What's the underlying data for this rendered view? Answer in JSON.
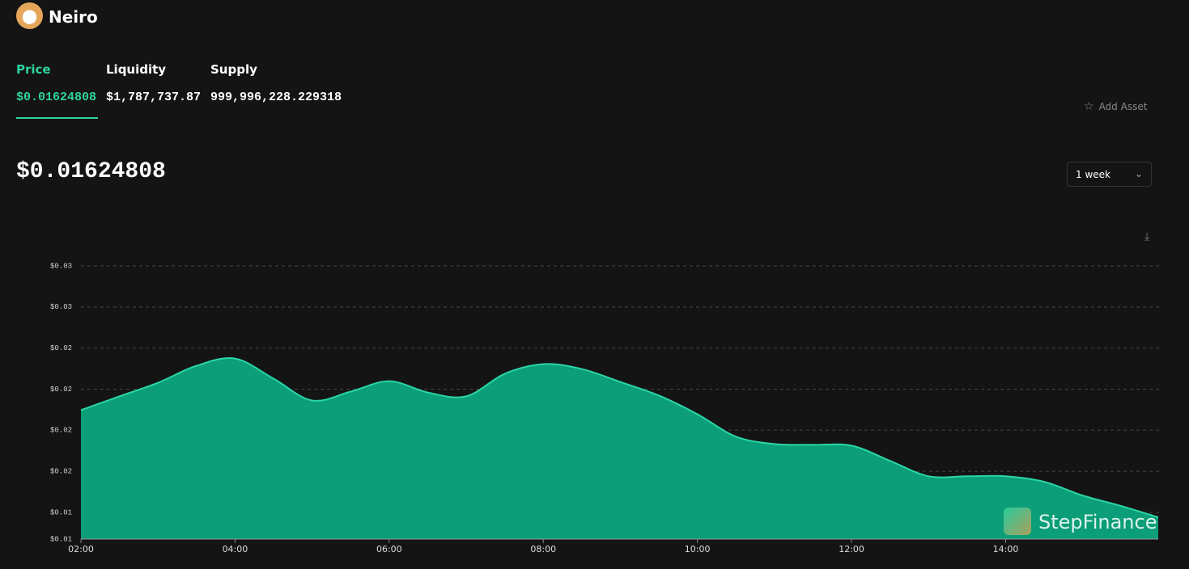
{
  "header": {
    "title": "Neiro"
  },
  "stats": [
    {
      "label": "Price",
      "value": "$0.01624808"
    },
    {
      "label": "Liquidity",
      "value": "$1,787,737.87"
    },
    {
      "label": "Supply",
      "value": "999,996,228.229318"
    }
  ],
  "add_asset": "Add Asset",
  "current_price": "$0.01624808",
  "range_select": "1 week",
  "watermark": "StepFinance",
  "chart_data": {
    "type": "area",
    "color": "#0b9e78",
    "line_color": "#2ad6a6",
    "grid": true,
    "x": [
      2,
      2.5,
      3,
      3.5,
      4,
      4.5,
      5,
      5.5,
      6,
      6.5,
      7,
      7.5,
      8,
      8.5,
      9,
      9.5,
      10,
      10.5,
      11,
      11.5,
      12,
      12.5,
      13,
      13.5,
      14,
      14.5,
      15,
      15.5,
      15.98
    ],
    "values": [
      0.01998,
      0.02065,
      0.02131,
      0.02214,
      0.02249,
      0.02151,
      0.02045,
      0.02088,
      0.02139,
      0.02084,
      0.02065,
      0.02175,
      0.02222,
      0.02198,
      0.02135,
      0.02069,
      0.01978,
      0.01869,
      0.01833,
      0.01829,
      0.01825,
      0.01751,
      0.01676,
      0.01676,
      0.01676,
      0.01649,
      0.01582,
      0.01531,
      0.01476
    ],
    "xlim": [
      2,
      15.98
    ],
    "xticks": [
      {
        "value": 2,
        "label": "02:00"
      },
      {
        "value": 4,
        "label": "04:00"
      },
      {
        "value": 6,
        "label": "06:00"
      },
      {
        "value": 8,
        "label": "08:00"
      },
      {
        "value": 10,
        "label": "10:00"
      },
      {
        "value": 12,
        "label": "12:00"
      },
      {
        "value": 14,
        "label": "14:00"
      }
    ],
    "ylim": [
      0.0137,
      0.027
    ],
    "yticks": [
      {
        "value": 0.0137,
        "label": "$0.01"
      },
      {
        "value": 0.015,
        "label": "$0.01"
      },
      {
        "value": 0.017,
        "label": "$0.02"
      },
      {
        "value": 0.019,
        "label": "$0.02"
      },
      {
        "value": 0.021,
        "label": "$0.02"
      },
      {
        "value": 0.023,
        "label": "$0.02"
      },
      {
        "value": 0.025,
        "label": "$0.03"
      },
      {
        "value": 0.027,
        "label": "$0.03"
      }
    ]
  }
}
